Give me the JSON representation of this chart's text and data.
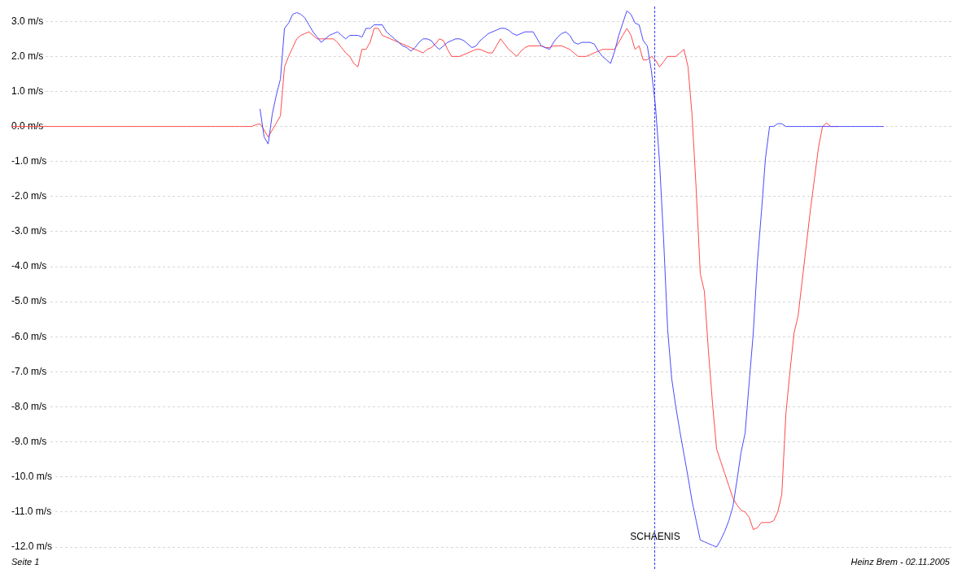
{
  "chart_data": {
    "type": "line",
    "categories": [
      null,
      null,
      null,
      null,
      null,
      null,
      null,
      null,
      null,
      null,
      null,
      null,
      null,
      null,
      null,
      null,
      null,
      null,
      null,
      null,
      null,
      null,
      null,
      null,
      null,
      null,
      null,
      null,
      null,
      null,
      null,
      null,
      null,
      null,
      null,
      null,
      null,
      null,
      null,
      null,
      null,
      null,
      null,
      null,
      null,
      null,
      null,
      null,
      null,
      null,
      null,
      null,
      null,
      null,
      null,
      null,
      null,
      null,
      null,
      null,
      null,
      null,
      null,
      null,
      null,
      null,
      null,
      null,
      null,
      null,
      null,
      null,
      null,
      null,
      null,
      null,
      null,
      null,
      null,
      null,
      null,
      null,
      null,
      null,
      null,
      null,
      null,
      null,
      null,
      null,
      null,
      null,
      null,
      null,
      null,
      null,
      null,
      null,
      null,
      null,
      null,
      null,
      null,
      null,
      null,
      null,
      null,
      null,
      null,
      null,
      null,
      null,
      null,
      null,
      null,
      null,
      null,
      null,
      null,
      null,
      null,
      null,
      null,
      null,
      null,
      null,
      null,
      null,
      null,
      null,
      null,
      null,
      null,
      null,
      null,
      null,
      null,
      null,
      null,
      null,
      null,
      null,
      null,
      null,
      null,
      null,
      null,
      null,
      null,
      null,
      null,
      null,
      null,
      null,
      null,
      null,
      null,
      null,
      null,
      null,
      null,
      null,
      null,
      null,
      null,
      null,
      null,
      null,
      null,
      null,
      null,
      null,
      null,
      null,
      null,
      null,
      null,
      null,
      null,
      null,
      null,
      null,
      null,
      null,
      null,
      null,
      null,
      null,
      null,
      null,
      null,
      null,
      null,
      null,
      null,
      null,
      null,
      null,
      null,
      null,
      null,
      null,
      null,
      null,
      null,
      null,
      null,
      null,
      null,
      null,
      null,
      null,
      null,
      null,
      null,
      null,
      null,
      null,
      null,
      null,
      null,
      null,
      null,
      null,
      null,
      null,
      null,
      null,
      null,
      null,
      null,
      null
    ],
    "series": [
      {
        "color": "#4a4aff",
        "values": [
          null,
          null,
          null,
          null,
          null,
          null,
          null,
          null,
          null,
          null,
          null,
          null,
          null,
          null,
          null,
          null,
          null,
          null,
          null,
          null,
          null,
          null,
          null,
          null,
          null,
          null,
          null,
          null,
          null,
          null,
          null,
          null,
          null,
          null,
          null,
          null,
          null,
          null,
          null,
          null,
          null,
          null,
          null,
          null,
          null,
          null,
          null,
          null,
          null,
          null,
          null,
          null,
          null,
          null,
          null,
          null,
          null,
          null,
          null,
          null,
          null,
          0.5,
          -0.3,
          -0.5,
          0.35,
          0.9,
          1.35,
          2.8,
          2.95,
          3.2,
          3.25,
          3.2,
          3.1,
          2.9,
          2.7,
          2.55,
          2.4,
          2.5,
          2.6,
          2.65,
          2.7,
          2.6,
          2.5,
          2.6,
          2.6,
          2.6,
          2.55,
          2.8,
          2.8,
          2.9,
          2.9,
          2.9,
          2.7,
          2.6,
          2.5,
          2.4,
          2.3,
          2.25,
          2.15,
          2.25,
          2.4,
          2.5,
          2.5,
          2.45,
          2.3,
          2.2,
          2.3,
          2.4,
          2.45,
          2.5,
          2.5,
          2.45,
          2.35,
          2.25,
          2.3,
          2.45,
          2.55,
          2.65,
          2.7,
          2.75,
          2.8,
          2.8,
          2.75,
          2.65,
          2.6,
          2.65,
          2.7,
          2.7,
          2.7,
          2.5,
          2.3,
          2.25,
          2.2,
          2.4,
          2.55,
          2.65,
          2.7,
          2.6,
          2.4,
          2.35,
          2.4,
          2.4,
          2.4,
          2.35,
          2.15,
          2.0,
          1.9,
          1.8,
          2.15,
          2.6,
          2.95,
          3.3,
          3.2,
          2.95,
          2.9,
          2.45,
          2.3,
          1.6,
          0.6,
          -1.0,
          -3.2,
          -5.8,
          -7.2,
          -8.0,
          -8.7,
          -9.35,
          -10.0,
          -10.7,
          -11.25,
          -11.8,
          -11.85,
          -11.9,
          -11.95,
          -12.0,
          -11.8,
          -11.55,
          -11.25,
          -10.85,
          -10.1,
          -9.3,
          -8.75,
          -7.3,
          -5.9,
          -3.9,
          -2.45,
          -0.9,
          0,
          0,
          0.08,
          0.08,
          0,
          0,
          0,
          0,
          0,
          0,
          0,
          0,
          0,
          0,
          0,
          0,
          0,
          0,
          0,
          0,
          0,
          0,
          0,
          0,
          0,
          0,
          0,
          0,
          0,
          null,
          null,
          null,
          null,
          null,
          null,
          null,
          null,
          null,
          null,
          null,
          null,
          null,
          null,
          null,
          null,
          null
        ]
      },
      {
        "color": "#ff4a4a",
        "values": [
          0,
          0,
          0,
          0,
          0,
          0,
          0,
          0,
          0,
          0,
          0,
          0,
          0,
          0,
          0,
          0,
          0,
          0,
          0,
          0,
          0,
          0,
          0,
          0,
          0,
          0,
          0,
          0,
          0,
          0,
          0,
          0,
          0,
          0,
          0,
          0,
          0,
          0,
          0,
          0,
          0,
          0,
          0,
          0,
          0,
          0,
          0,
          0,
          0,
          0,
          0,
          0,
          0,
          0,
          0,
          0,
          0,
          0,
          0,
          0,
          0.05,
          0.08,
          -0.1,
          -0.3,
          -0.1,
          0.1,
          0.3,
          1.7,
          2.0,
          2.25,
          2.5,
          2.6,
          2.65,
          2.7,
          2.6,
          2.5,
          2.5,
          2.5,
          2.5,
          2.5,
          2.4,
          2.25,
          2.1,
          2.0,
          1.8,
          1.7,
          2.2,
          2.2,
          2.4,
          2.8,
          2.8,
          2.6,
          2.55,
          2.5,
          2.45,
          2.4,
          2.35,
          2.3,
          2.25,
          2.2,
          2.15,
          2.1,
          2.2,
          2.25,
          2.35,
          2.5,
          2.45,
          2.2,
          2.0,
          2.0,
          2.0,
          2.05,
          2.1,
          2.15,
          2.2,
          2.2,
          2.15,
          2.1,
          2.1,
          2.3,
          2.5,
          2.35,
          2.2,
          2.1,
          2.0,
          2.15,
          2.25,
          2.3,
          2.3,
          2.3,
          2.3,
          2.25,
          2.25,
          2.3,
          2.3,
          2.3,
          2.25,
          2.2,
          2.1,
          2.0,
          2.0,
          2.0,
          2.05,
          2.1,
          2.15,
          2.2,
          2.2,
          2.2,
          2.2,
          2.4,
          2.6,
          2.8,
          2.6,
          2.2,
          2.3,
          1.9,
          1.9,
          2.0,
          1.9,
          1.7,
          1.85,
          2.0,
          2.0,
          2.0,
          2.1,
          2.2,
          1.7,
          0.3,
          -1.8,
          -4.2,
          -4.7,
          -6.4,
          -7.9,
          -9.2,
          -9.55,
          -9.9,
          -10.25,
          -10.6,
          -10.8,
          -10.95,
          -11.0,
          -11.15,
          -11.5,
          -11.45,
          -11.3,
          -11.3,
          -11.3,
          -11.25,
          -11.0,
          -10.5,
          -8.2,
          -7.0,
          -5.9,
          -5.4,
          -4.4,
          -3.4,
          -2.4,
          -1.5,
          -0.6,
          0,
          0.1,
          0,
          0,
          0,
          null,
          null,
          null,
          null,
          null,
          null,
          null,
          null,
          null,
          null,
          null,
          null,
          null,
          null,
          null,
          null,
          null,
          null,
          null,
          null,
          null,
          null,
          null,
          null,
          null,
          null,
          null,
          null
        ]
      }
    ],
    "ylim": [
      -12,
      3.4
    ],
    "yticks": [
      {
        "value": 3,
        "label": "3.0 m/s"
      },
      {
        "value": 2,
        "label": "2.0 m/s"
      },
      {
        "value": 1,
        "label": "1.0 m/s"
      },
      {
        "value": 0,
        "label": "0.0 m/s"
      },
      {
        "value": -1,
        "label": "-1.0 m/s"
      },
      {
        "value": -2,
        "label": "-2.0 m/s"
      },
      {
        "value": -3,
        "label": "-3.0 m/s"
      },
      {
        "value": -4,
        "label": "-4.0 m/s"
      },
      {
        "value": -5,
        "label": "-5.0 m/s"
      },
      {
        "value": -6,
        "label": "-6.0 m/s"
      },
      {
        "value": -7,
        "label": "-7.0 m/s"
      },
      {
        "value": -8,
        "label": "-8.0 m/s"
      },
      {
        "value": -9,
        "label": "-9.0 m/s"
      },
      {
        "value": -10,
        "label": "-10.0 m/s"
      },
      {
        "value": -11,
        "label": "-11.0 m/s"
      },
      {
        "value": -12,
        "label": "-12.0 m/s"
      }
    ],
    "tick_labels": "y",
    "grid": "y",
    "legend": false,
    "marker": "none",
    "line_style": "solid",
    "annotations": [
      "SCHAENIS",
      "Seite 1",
      "Heinz Brem - 02.11.2005"
    ]
  }
}
